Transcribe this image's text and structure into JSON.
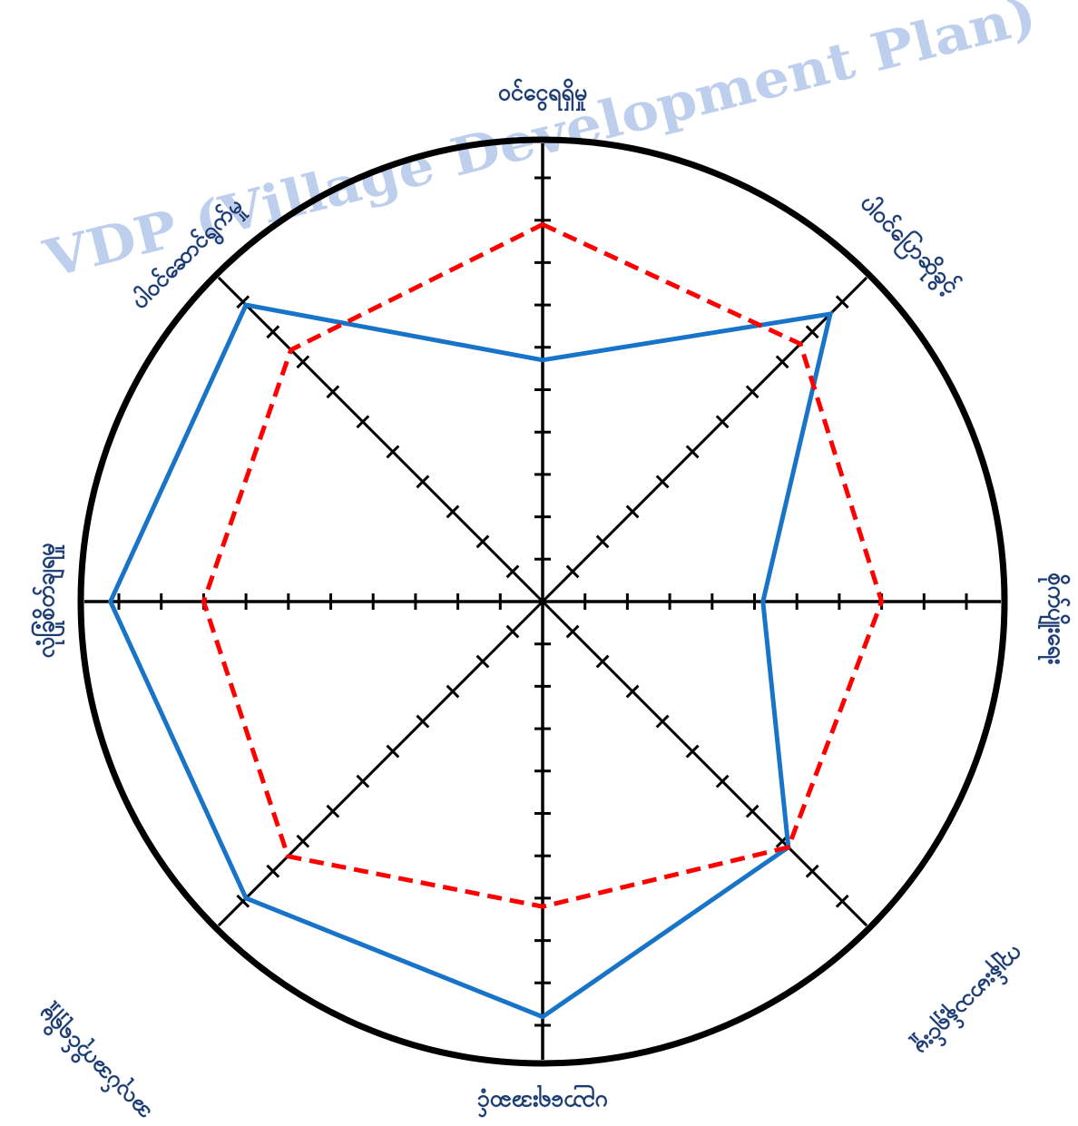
{
  "watermark": "VDP (Village Development Plan)",
  "colors": {
    "circle": "#000000",
    "axes": "#000000",
    "series_blue": "#1874c9",
    "series_red": "#ff0000",
    "watermark": "#b3c7ea",
    "labels": "#1d3a6e"
  },
  "chart_data": {
    "type": "radar",
    "axes": [
      "ဝင်ငွေရရှိမှု",
      "ပါဝင်ပြောဆိုခွင့်",
      "စိုက်ပျိုးရေး",
      "ကျန်းမာသန့်ရှင်းမှု",
      "ပညာရေးအဆင့်",
      "အလုပ်အကိုင်ရရှိမှု",
      "လုံခြုံစိတ်ချရမှု",
      "ပါဝင်ဆောင်ရွက်မှု"
    ],
    "scale_max": 10,
    "grid": false,
    "series": [
      {
        "style": "solid",
        "color": "#1874c9",
        "values": [
          5.7,
          9.6,
          5.2,
          8.2,
          9.8,
          9.9,
          10.2,
          9.9
        ]
      },
      {
        "style": "dashed",
        "color": "#ff0000",
        "values": [
          8.9,
          8.6,
          8.0,
          8.2,
          7.2,
          8.5,
          8.0,
          8.4
        ]
      }
    ]
  }
}
